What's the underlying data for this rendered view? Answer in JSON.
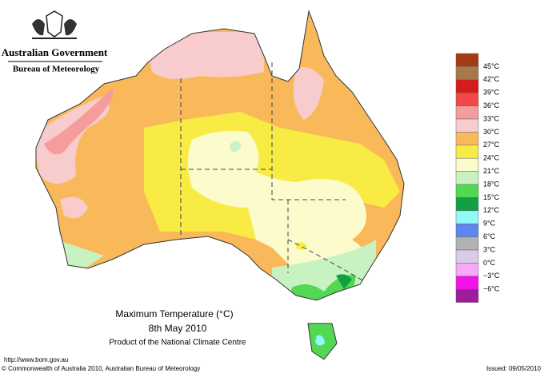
{
  "header": {
    "government": "Australian Government",
    "bureau": "Bureau of Meteorology"
  },
  "legend": [
    {
      "label": "45°C",
      "color": "#a33c12"
    },
    {
      "label": "42°C",
      "color": "#a8784a"
    },
    {
      "label": "39°C",
      "color": "#d41c1c"
    },
    {
      "label": "36°C",
      "color": "#f24848"
    },
    {
      "label": "33°C",
      "color": "#f59c9c"
    },
    {
      "label": "30°C",
      "color": "#f8cccc"
    },
    {
      "label": "27°C",
      "color": "#f9b95a"
    },
    {
      "label": "24°C",
      "color": "#f8ec44"
    },
    {
      "label": "21°C",
      "color": "#fbfbcc"
    },
    {
      "label": "18°C",
      "color": "#c8f2c2"
    },
    {
      "label": "15°C",
      "color": "#52d852"
    },
    {
      "label": "12°C",
      "color": "#12a044"
    },
    {
      "label": "9°C",
      "color": "#92f8f8"
    },
    {
      "label": "6°C",
      "color": "#5c86f0"
    },
    {
      "label": "3°C",
      "color": "#b2b2b2"
    },
    {
      "label": "0°C",
      "color": "#dccbe8"
    },
    {
      "label": "−3°C",
      "color": "#f8a8f8"
    },
    {
      "label": "−6°C",
      "color": "#f014e8"
    },
    {
      "label": "",
      "color": "#9c1c9c"
    }
  ],
  "title": {
    "heading": "Maximum Temperature (°C)",
    "date": "8th May 2010",
    "product": "Product of the National Climate Centre"
  },
  "footer": {
    "url": "http://www.bom.gov.au",
    "copyright": "© Commonwealth of Australia 2010, Australian Bureau of Meteorology",
    "issued": "Issued: 09/05/2010"
  }
}
